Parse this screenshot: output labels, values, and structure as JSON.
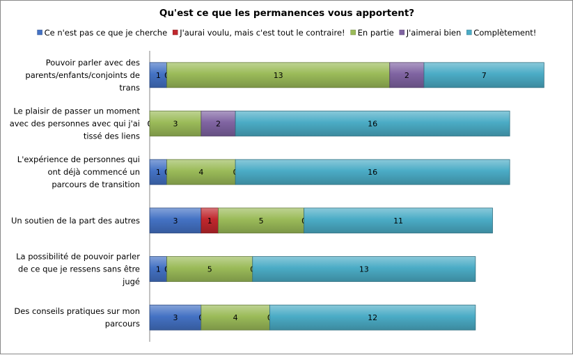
{
  "chart_data": {
    "type": "bar",
    "orientation": "horizontal",
    "stacked": true,
    "title": "Qu'est ce que les permanences vous apportent?",
    "xlabel": "",
    "ylabel": "",
    "legend_position": "top",
    "grid": false,
    "xlim": [
      0,
      24
    ],
    "categories": [
      [
        "Pouvoir parler avec des",
        "parents/enfants/conjoints de",
        "trans"
      ],
      [
        "Le plaisir de passer un moment",
        "avec des personnes avec qui j'ai",
        "tissé des liens"
      ],
      [
        "L'expérience de personnes qui",
        "ont déjà commencé un",
        "parcours de transition"
      ],
      [
        "Un soutien de la part des autres"
      ],
      [
        "La possibilité de pouvoir parler",
        "de ce que je ressens sans être",
        "jugé"
      ],
      [
        "Des conseils pratiques sur mon",
        "parcours"
      ]
    ],
    "series": [
      {
        "name": "Ce n'est pas ce que je cherche",
        "color": "#4472C4",
        "values": [
          1,
          0,
          1,
          3,
          1,
          3
        ]
      },
      {
        "name": "J'aurai voulu, mais c'est tout le contraire!",
        "color": "#C0272D",
        "values": [
          0,
          0,
          0,
          1,
          0,
          0
        ]
      },
      {
        "name": "En partie",
        "color": "#9BBB59",
        "values": [
          13,
          3,
          4,
          5,
          5,
          4
        ]
      },
      {
        "name": "J'aimerai bien",
        "color": "#8064A2",
        "values": [
          2,
          2,
          0,
          0,
          0,
          0
        ]
      },
      {
        "name": "Complètement!",
        "color": "#4BACC6",
        "values": [
          7,
          16,
          16,
          11,
          13,
          12
        ]
      }
    ]
  }
}
